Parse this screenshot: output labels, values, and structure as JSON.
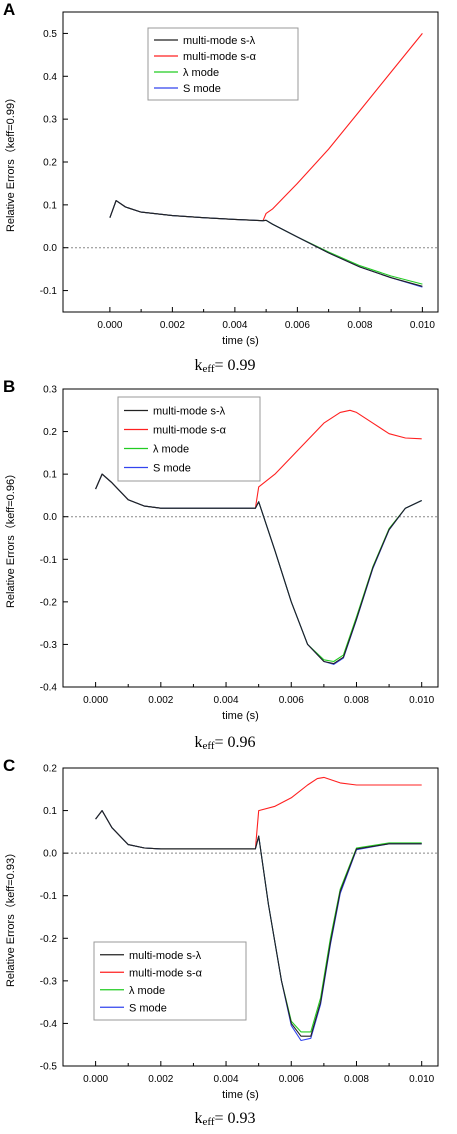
{
  "chart_data": [
    {
      "panel_label": "A",
      "type": "line",
      "xlabel": "time (s)",
      "ylabel": "Relative Errors（keff=0.99）",
      "caption_base": "k",
      "caption_sub": "eff",
      "caption_value": "= 0.99",
      "xlim": [
        -0.0015,
        0.0105
      ],
      "ylim": [
        -0.15,
        0.55
      ],
      "xticks": [
        "0.000",
        "0.002",
        "0.004",
        "0.006",
        "0.008",
        "0.010"
      ],
      "xtick_values": [
        0,
        0.002,
        0.004,
        0.006,
        0.008,
        0.01
      ],
      "yticks": [
        "-0.1",
        "0.0",
        "0.1",
        "0.2",
        "0.3",
        "0.4",
        "0.5"
      ],
      "ytick_values": [
        -0.1,
        0,
        0.1,
        0.2,
        0.3,
        0.4,
        0.5
      ],
      "legend_position": "top-center",
      "reference_line_y": 0,
      "series": [
        {
          "name": "multi-mode s-λ",
          "color": "#222222",
          "x": [
            0,
            0.0002,
            0.0005,
            0.001,
            0.002,
            0.003,
            0.004,
            0.0049,
            0.005,
            0.0052,
            0.006,
            0.007,
            0.008,
            0.009,
            0.01
          ],
          "y": [
            0.07,
            0.11,
            0.095,
            0.083,
            0.075,
            0.07,
            0.066,
            0.063,
            0.064,
            0.055,
            0.025,
            -0.012,
            -0.045,
            -0.07,
            -0.09
          ]
        },
        {
          "name": "multi-mode s-α",
          "color": "#ff2020",
          "x": [
            0,
            0.0002,
            0.0005,
            0.001,
            0.002,
            0.003,
            0.004,
            0.0049,
            0.005,
            0.0052,
            0.006,
            0.007,
            0.008,
            0.009,
            0.01
          ],
          "y": [
            0.07,
            0.11,
            0.095,
            0.083,
            0.075,
            0.07,
            0.066,
            0.063,
            0.08,
            0.09,
            0.15,
            0.23,
            0.32,
            0.41,
            0.5
          ]
        },
        {
          "name": "λ mode",
          "color": "#22cc22",
          "x": [
            0,
            0.0002,
            0.0005,
            0.001,
            0.002,
            0.003,
            0.004,
            0.0049,
            0.005,
            0.0052,
            0.006,
            0.007,
            0.008,
            0.009,
            0.01
          ],
          "y": [
            0.07,
            0.11,
            0.095,
            0.083,
            0.075,
            0.07,
            0.066,
            0.063,
            0.064,
            0.055,
            0.025,
            -0.01,
            -0.042,
            -0.066,
            -0.085
          ]
        },
        {
          "name": "S mode",
          "color": "#3344ee",
          "x": [
            0,
            0.0002,
            0.0005,
            0.001,
            0.002,
            0.003,
            0.004,
            0.0049,
            0.005,
            0.0052,
            0.006,
            0.007,
            0.008,
            0.009,
            0.01
          ],
          "y": [
            0.07,
            0.11,
            0.095,
            0.083,
            0.075,
            0.07,
            0.066,
            0.063,
            0.064,
            0.055,
            0.025,
            -0.012,
            -0.045,
            -0.07,
            -0.092
          ]
        }
      ]
    },
    {
      "panel_label": "B",
      "type": "line",
      "xlabel": "time (s)",
      "ylabel": "Relative Errors（keff=0.96）",
      "caption_base": "k",
      "caption_sub": "eff",
      "caption_value": "= 0.96",
      "xlim": [
        -0.001,
        0.0105
      ],
      "ylim": [
        -0.4,
        0.3
      ],
      "xticks": [
        "0.000",
        "0.002",
        "0.004",
        "0.006",
        "0.008",
        "0.010"
      ],
      "xtick_values": [
        0,
        0.002,
        0.004,
        0.006,
        0.008,
        0.01
      ],
      "yticks": [
        "-0.4",
        "-0.3",
        "-0.2",
        "-0.1",
        "0.0",
        "0.1",
        "0.2",
        "0.3"
      ],
      "ytick_values": [
        -0.4,
        -0.3,
        -0.2,
        -0.1,
        0,
        0.1,
        0.2,
        0.3
      ],
      "legend_position": "top-left",
      "reference_line_y": 0,
      "series": [
        {
          "name": "multi-mode s-λ",
          "color": "#222222",
          "x": [
            0,
            0.0002,
            0.0005,
            0.001,
            0.0015,
            0.002,
            0.003,
            0.004,
            0.0049,
            0.005,
            0.0055,
            0.006,
            0.0065,
            0.007,
            0.0073,
            0.0076,
            0.008,
            0.0085,
            0.009,
            0.0095,
            0.01
          ],
          "y": [
            0.065,
            0.1,
            0.08,
            0.04,
            0.025,
            0.02,
            0.02,
            0.02,
            0.02,
            0.035,
            -0.08,
            -0.2,
            -0.3,
            -0.34,
            -0.345,
            -0.33,
            -0.24,
            -0.12,
            -0.03,
            0.02,
            0.038
          ]
        },
        {
          "name": "multi-mode s-α",
          "color": "#ff2020",
          "x": [
            0,
            0.0002,
            0.0005,
            0.001,
            0.0015,
            0.002,
            0.003,
            0.004,
            0.0049,
            0.005,
            0.0055,
            0.006,
            0.0065,
            0.007,
            0.0075,
            0.0078,
            0.008,
            0.0085,
            0.009,
            0.0095,
            0.01
          ],
          "y": [
            0.065,
            0.1,
            0.08,
            0.04,
            0.025,
            0.02,
            0.02,
            0.02,
            0.02,
            0.07,
            0.1,
            0.14,
            0.18,
            0.22,
            0.245,
            0.25,
            0.245,
            0.22,
            0.195,
            0.185,
            0.183
          ]
        },
        {
          "name": "λ mode",
          "color": "#22cc22",
          "x": [
            0,
            0.0002,
            0.0005,
            0.001,
            0.0015,
            0.002,
            0.003,
            0.004,
            0.0049,
            0.005,
            0.0055,
            0.006,
            0.0065,
            0.007,
            0.0073,
            0.0076,
            0.008,
            0.0085,
            0.009,
            0.0095,
            0.01
          ],
          "y": [
            0.065,
            0.1,
            0.08,
            0.04,
            0.025,
            0.02,
            0.02,
            0.02,
            0.02,
            0.035,
            -0.08,
            -0.2,
            -0.3,
            -0.336,
            -0.34,
            -0.325,
            -0.235,
            -0.118,
            -0.028,
            0.02,
            0.038
          ]
        },
        {
          "name": "S mode",
          "color": "#3344ee",
          "x": [
            0,
            0.0002,
            0.0005,
            0.001,
            0.0015,
            0.002,
            0.003,
            0.004,
            0.0049,
            0.005,
            0.0055,
            0.006,
            0.0065,
            0.007,
            0.0073,
            0.0076,
            0.008,
            0.0085,
            0.009,
            0.0095,
            0.01
          ],
          "y": [
            0.065,
            0.1,
            0.08,
            0.04,
            0.025,
            0.02,
            0.02,
            0.02,
            0.02,
            0.035,
            -0.08,
            -0.2,
            -0.3,
            -0.34,
            -0.347,
            -0.332,
            -0.242,
            -0.122,
            -0.031,
            0.02,
            0.038
          ]
        }
      ]
    },
    {
      "panel_label": "C",
      "type": "line",
      "xlabel": "time (s)",
      "ylabel": "Relative Errors（keff=0.93）",
      "caption_base": "k",
      "caption_sub": "eff",
      "caption_value": "= 0.93",
      "xlim": [
        -0.001,
        0.0105
      ],
      "ylim": [
        -0.5,
        0.2
      ],
      "xticks": [
        "0.000",
        "0.002",
        "0.004",
        "0.006",
        "0.008",
        "0.010"
      ],
      "xtick_values": [
        0,
        0.002,
        0.004,
        0.006,
        0.008,
        0.01
      ],
      "yticks": [
        "-0.5",
        "-0.4",
        "-0.3",
        "-0.2",
        "-0.1",
        "0.0",
        "0.1",
        "0.2"
      ],
      "ytick_values": [
        -0.5,
        -0.4,
        -0.3,
        -0.2,
        -0.1,
        0,
        0.1,
        0.2
      ],
      "legend_position": "bottom-left",
      "reference_line_y": 0,
      "series": [
        {
          "name": "multi-mode s-λ",
          "color": "#222222",
          "x": [
            0,
            0.0002,
            0.0005,
            0.001,
            0.0015,
            0.002,
            0.003,
            0.004,
            0.0049,
            0.005,
            0.0053,
            0.0057,
            0.006,
            0.0063,
            0.0066,
            0.0069,
            0.0072,
            0.0075,
            0.008,
            0.009,
            0.01
          ],
          "y": [
            0.08,
            0.1,
            0.06,
            0.02,
            0.012,
            0.01,
            0.01,
            0.01,
            0.01,
            0.04,
            -0.12,
            -0.3,
            -0.4,
            -0.43,
            -0.43,
            -0.35,
            -0.21,
            -0.09,
            0.01,
            0.022,
            0.022
          ]
        },
        {
          "name": "multi-mode s-α",
          "color": "#ff2020",
          "x": [
            0,
            0.0002,
            0.0005,
            0.001,
            0.0015,
            0.002,
            0.003,
            0.004,
            0.0049,
            0.005,
            0.0055,
            0.006,
            0.0065,
            0.0068,
            0.007,
            0.0075,
            0.008,
            0.009,
            0.01
          ],
          "y": [
            0.08,
            0.1,
            0.06,
            0.02,
            0.012,
            0.01,
            0.01,
            0.01,
            0.01,
            0.1,
            0.11,
            0.13,
            0.16,
            0.175,
            0.178,
            0.165,
            0.16,
            0.16,
            0.16
          ]
        },
        {
          "name": "λ mode",
          "color": "#22cc22",
          "x": [
            0,
            0.0002,
            0.0005,
            0.001,
            0.0015,
            0.002,
            0.003,
            0.004,
            0.0049,
            0.005,
            0.0053,
            0.0057,
            0.006,
            0.0063,
            0.0066,
            0.0069,
            0.0072,
            0.0075,
            0.008,
            0.009,
            0.01
          ],
          "y": [
            0.08,
            0.1,
            0.06,
            0.02,
            0.012,
            0.01,
            0.01,
            0.01,
            0.01,
            0.04,
            -0.12,
            -0.3,
            -0.395,
            -0.42,
            -0.42,
            -0.34,
            -0.2,
            -0.085,
            0.012,
            0.024,
            0.024
          ]
        },
        {
          "name": "S mode",
          "color": "#3344ee",
          "x": [
            0,
            0.0002,
            0.0005,
            0.001,
            0.0015,
            0.002,
            0.003,
            0.004,
            0.0049,
            0.005,
            0.0053,
            0.0057,
            0.006,
            0.0063,
            0.0066,
            0.0069,
            0.0072,
            0.0075,
            0.008,
            0.009,
            0.01
          ],
          "y": [
            0.08,
            0.1,
            0.06,
            0.02,
            0.012,
            0.01,
            0.01,
            0.01,
            0.01,
            0.04,
            -0.12,
            -0.3,
            -0.405,
            -0.44,
            -0.435,
            -0.355,
            -0.215,
            -0.095,
            0.008,
            0.022,
            0.022
          ]
        }
      ]
    }
  ]
}
